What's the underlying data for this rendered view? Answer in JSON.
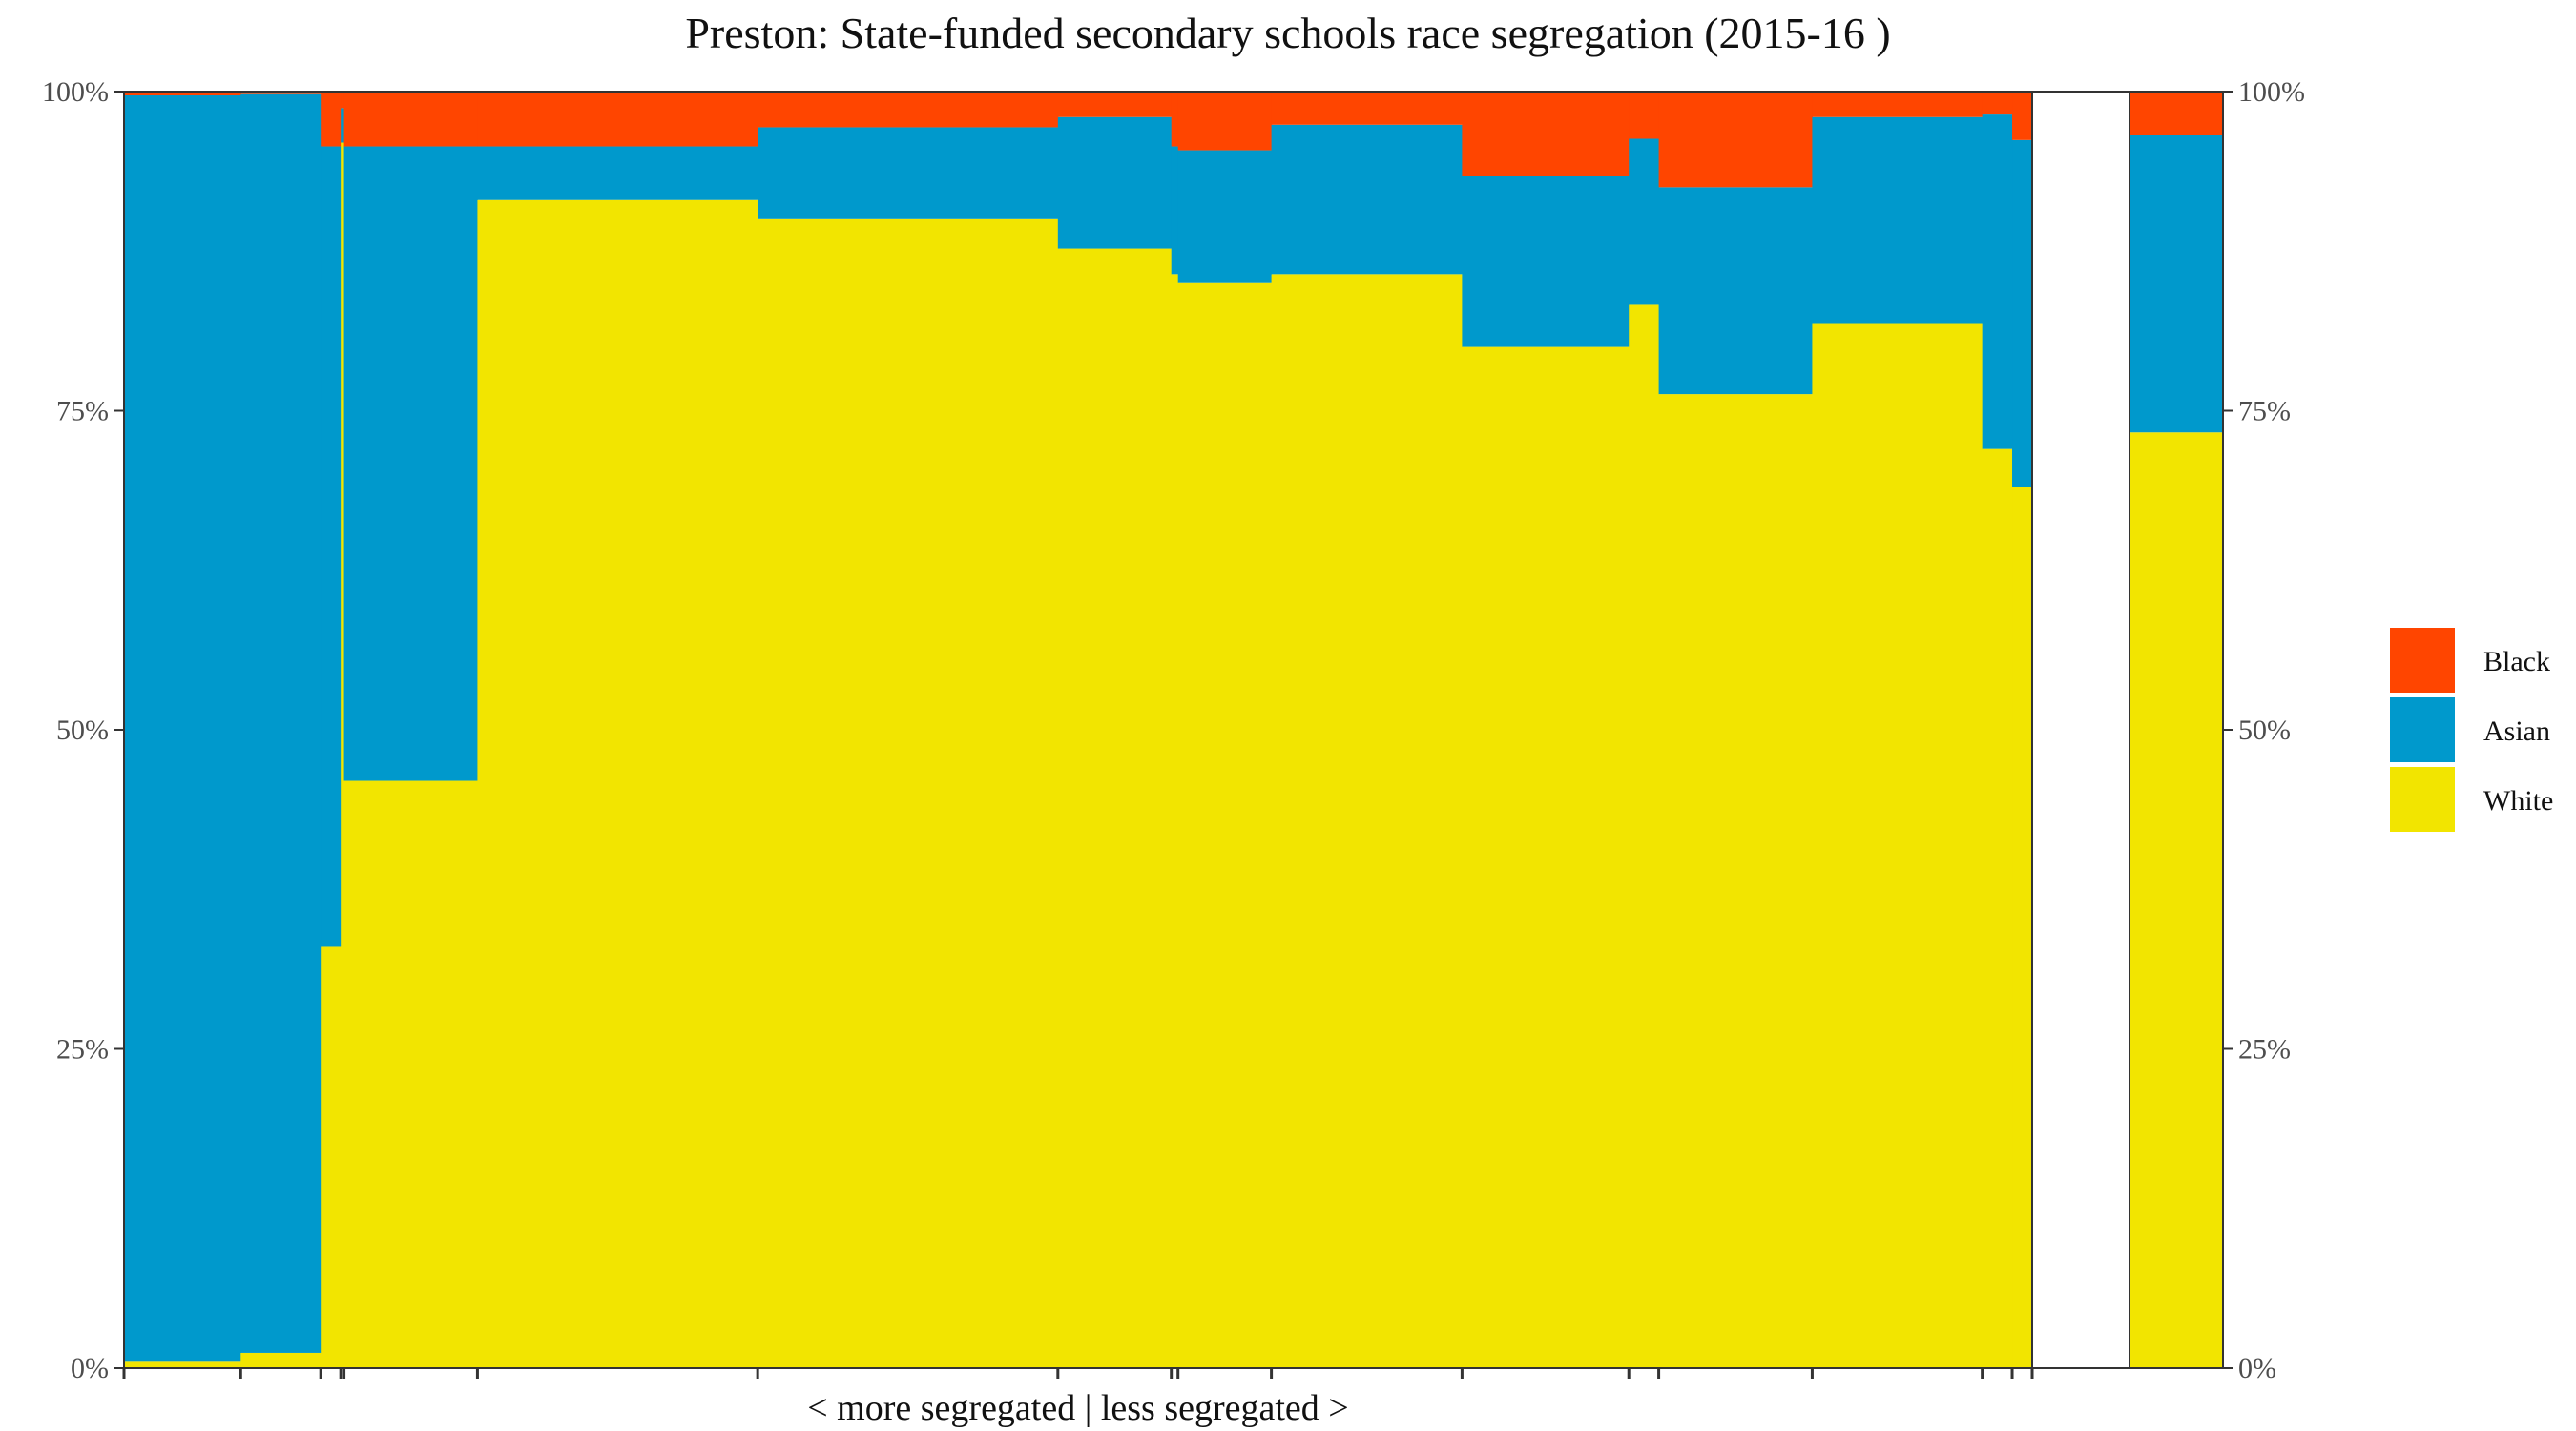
{
  "chart_data": {
    "type": "bar",
    "variant": "variable-width stacked proportion (mosaic)",
    "title": "Preston: State-funded secondary schools race segregation (2015-16 )",
    "xlabel": "< more segregated | less segregated >",
    "ylabel": "",
    "ylim": [
      0,
      1
    ],
    "y_ticks": [
      "0%",
      "25%",
      "50%",
      "75%",
      "100%"
    ],
    "y_tick_values": [
      0,
      0.25,
      0.5,
      0.75,
      1
    ],
    "right_axis": true,
    "grid": false,
    "legend_position": "right",
    "colors": {
      "Black": "#FF4500",
      "Asian": "#0099CC",
      "White": "#F2E500"
    },
    "series": [
      {
        "name": "Black"
      },
      {
        "name": "Asian"
      },
      {
        "name": "White"
      }
    ],
    "legend_order": [
      "Black",
      "Asian",
      "White"
    ],
    "stack_order": [
      "White",
      "Asian",
      "Black"
    ],
    "schools": [
      {
        "width": 0.0612,
        "White": 0.005,
        "Asian": 0.992,
        "Black": 0.003
      },
      {
        "width": 0.042,
        "White": 0.012,
        "Asian": 0.986,
        "Black": 0.002
      },
      {
        "width": 0.0105,
        "White": 0.33,
        "Asian": 0.627,
        "Black": 0.043
      },
      {
        "width": 0.0017,
        "White": 0.96,
        "Asian": 0.027,
        "Black": 0.013
      },
      {
        "width": 0.07,
        "White": 0.46,
        "Asian": 0.497,
        "Black": 0.043
      },
      {
        "width": 0.147,
        "White": 0.915,
        "Asian": 0.042,
        "Black": 0.043
      },
      {
        "width": 0.1575,
        "White": 0.9,
        "Asian": 0.072,
        "Black": 0.028
      },
      {
        "width": 0.0595,
        "White": 0.877,
        "Asian": 0.103,
        "Black": 0.02
      },
      {
        "width": 0.0035,
        "White": 0.857,
        "Asian": 0.1,
        "Black": 0.043
      },
      {
        "width": 0.049,
        "White": 0.85,
        "Asian": 0.104,
        "Black": 0.046
      },
      {
        "width": 0.1,
        "White": 0.857,
        "Asian": 0.117,
        "Black": 0.026
      },
      {
        "width": 0.0875,
        "White": 0.8,
        "Asian": 0.134,
        "Black": 0.066
      },
      {
        "width": 0.0157,
        "White": 0.833,
        "Asian": 0.13,
        "Black": 0.037
      },
      {
        "width": 0.0805,
        "White": 0.763,
        "Asian": 0.162,
        "Black": 0.075
      },
      {
        "width": 0.0892,
        "White": 0.818,
        "Asian": 0.162,
        "Black": 0.02
      },
      {
        "width": 0.0157,
        "White": 0.72,
        "Asian": 0.262,
        "Black": 0.018
      },
      {
        "width": 0.0105,
        "White": 0.69,
        "Asian": 0.272,
        "Black": 0.038
      }
    ],
    "total": {
      "White": 0.733,
      "Asian": 0.233,
      "Black": 0.034
    }
  }
}
